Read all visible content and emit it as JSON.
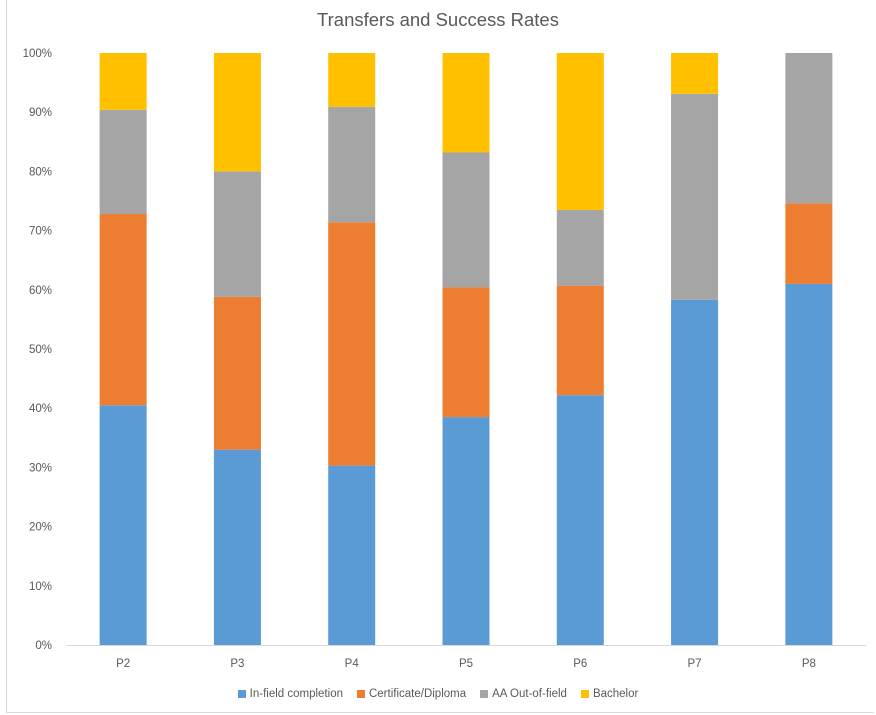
{
  "chart_data": {
    "type": "bar",
    "stacked": true,
    "percent_stacked": true,
    "title": "Transfers and Success Rates",
    "xlabel": "",
    "ylabel": "",
    "categories": [
      "P2",
      "P3",
      "P4",
      "P5",
      "P6",
      "P7",
      "P8"
    ],
    "yticks": [
      "0%",
      "10%",
      "20%",
      "30%",
      "40%",
      "50%",
      "60%",
      "70%",
      "80%",
      "90%",
      "100%"
    ],
    "ylim": [
      0,
      100
    ],
    "grid": false,
    "legend": "bottom",
    "series": [
      {
        "name": "In-field completion",
        "color": "#5b9bd5",
        "values": [
          40.5,
          33.0,
          30.3,
          38.5,
          42.2,
          58.3,
          61.0
        ]
      },
      {
        "name": "Certificate/Diploma",
        "color": "#ed7d31",
        "values": [
          32.3,
          25.8,
          41.1,
          21.9,
          18.5,
          0,
          13.6
        ]
      },
      {
        "name": "AA Out-of-field",
        "color": "#a5a5a5",
        "values": [
          17.6,
          21.2,
          19.5,
          22.8,
          12.8,
          34.8,
          25.4
        ]
      },
      {
        "name": "Bachelor",
        "color": "#ffc000",
        "values": [
          9.6,
          20.0,
          9.1,
          16.8,
          26.5,
          6.9,
          0
        ]
      }
    ]
  }
}
